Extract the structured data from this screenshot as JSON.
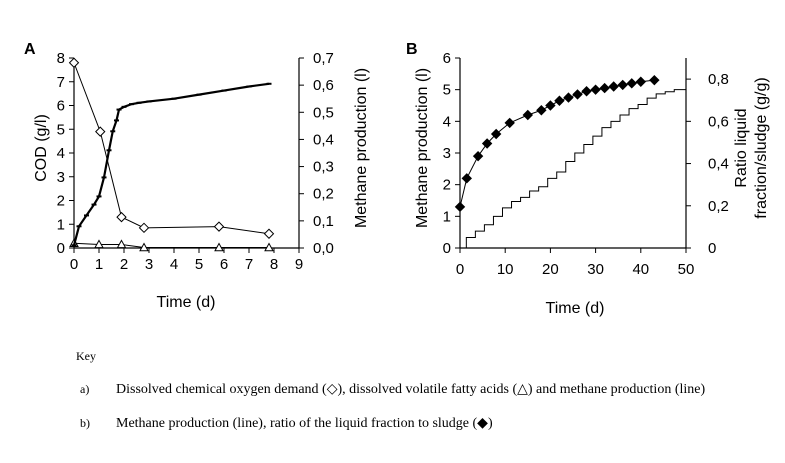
{
  "chart_data": [
    {
      "panel": "A",
      "type": "line",
      "xlabel": "Time (d)",
      "ylabel": "COD (g/l)",
      "y2label": "Methane production (l)",
      "xlim": [
        0,
        9
      ],
      "xticks": [
        "0",
        "1",
        "2",
        "3",
        "4",
        "5",
        "6",
        "7",
        "8",
        "9"
      ],
      "ylim": [
        0,
        8
      ],
      "yticks": [
        "0",
        "1",
        "2",
        "3",
        "4",
        "5",
        "6",
        "7",
        "8"
      ],
      "y2lim": [
        0,
        0.7
      ],
      "y2ticks": [
        "0,0",
        "0,1",
        "0,2",
        "0,3",
        "0,4",
        "0,5",
        "0,6",
        "0,7"
      ],
      "series": [
        {
          "name": "Dissolved COD",
          "axis": "left",
          "marker": "diamond-open",
          "x": [
            0,
            1.05,
            1.9,
            2.8,
            5.8,
            7.8
          ],
          "y": [
            7.8,
            4.9,
            1.3,
            0.85,
            0.9,
            0.6
          ]
        },
        {
          "name": "Dissolved volatile fatty acids",
          "axis": "left",
          "marker": "triangle-open",
          "x": [
            0,
            1.0,
            1.9,
            2.8,
            5.8,
            7.8
          ],
          "y": [
            0.2,
            0.15,
            0.15,
            0.02,
            0.02,
            0.02
          ]
        },
        {
          "name": "Methane production",
          "axis": "right",
          "marker": "line-dense",
          "x": [
            0,
            0.2,
            0.5,
            0.8,
            1.0,
            1.2,
            1.4,
            1.55,
            1.7,
            1.8,
            2.0,
            2.3,
            2.6,
            3.0,
            4.0,
            5.0,
            6.0,
            7.0,
            7.8
          ],
          "y": [
            0.01,
            0.08,
            0.12,
            0.16,
            0.19,
            0.26,
            0.36,
            0.43,
            0.47,
            0.51,
            0.52,
            0.53,
            0.535,
            0.54,
            0.55,
            0.565,
            0.58,
            0.595,
            0.605
          ]
        }
      ]
    },
    {
      "panel": "B",
      "type": "line",
      "xlabel": "Time (d)",
      "ylabel": "Methane production (l)",
      "y2label_line1": "Ratio liquid",
      "y2label_line2": "fraction/sludge (g/g)",
      "xlim": [
        0,
        50
      ],
      "xticks": [
        "0",
        "10",
        "20",
        "30",
        "40",
        "50"
      ],
      "ylim": [
        0,
        6
      ],
      "yticks": [
        "0",
        "1",
        "2",
        "3",
        "4",
        "5",
        "6"
      ],
      "y2lim": [
        0,
        0.9
      ],
      "y2ticks": [
        "0",
        "0,2",
        "0,4",
        "0,6",
        "0,8"
      ],
      "y2tickvals": [
        0,
        0.2,
        0.4,
        0.6,
        0.8
      ],
      "series": [
        {
          "name": "Ratio of the liquid fraction to sludge",
          "axis": "left",
          "marker": "diamond-filled",
          "x": [
            0,
            1.5,
            4,
            6,
            8,
            11,
            15,
            18,
            20,
            22,
            24,
            26,
            28,
            30,
            32,
            34,
            36,
            38,
            40,
            43
          ],
          "y": [
            1.3,
            2.2,
            2.9,
            3.3,
            3.6,
            3.95,
            4.2,
            4.35,
            4.5,
            4.65,
            4.75,
            4.85,
            4.95,
            5.0,
            5.05,
            5.1,
            5.15,
            5.2,
            5.25,
            5.3
          ]
        },
        {
          "name": "Methane production",
          "axis": "right",
          "marker": "step-line",
          "x": [
            0,
            2,
            4,
            6,
            8,
            10,
            12,
            14,
            16,
            18,
            20,
            22,
            24,
            26,
            28,
            30,
            32,
            34,
            36,
            38,
            40,
            42,
            44,
            46,
            48,
            50
          ],
          "y": [
            0.0,
            0.05,
            0.08,
            0.11,
            0.15,
            0.19,
            0.22,
            0.24,
            0.27,
            0.29,
            0.33,
            0.36,
            0.41,
            0.45,
            0.49,
            0.53,
            0.57,
            0.6,
            0.63,
            0.66,
            0.68,
            0.71,
            0.73,
            0.74,
            0.75,
            0.75
          ]
        }
      ]
    }
  ],
  "key": {
    "title": "Key",
    "items": [
      {
        "mark": "a)",
        "text": "Dissolved chemical oxygen demand (◇), dissolved volatile fatty acids  (△) and methane production (line)"
      },
      {
        "mark": "b)",
        "text": "Methane production (line),  ratio of the liquid fraction to sludge (◆)"
      }
    ]
  }
}
